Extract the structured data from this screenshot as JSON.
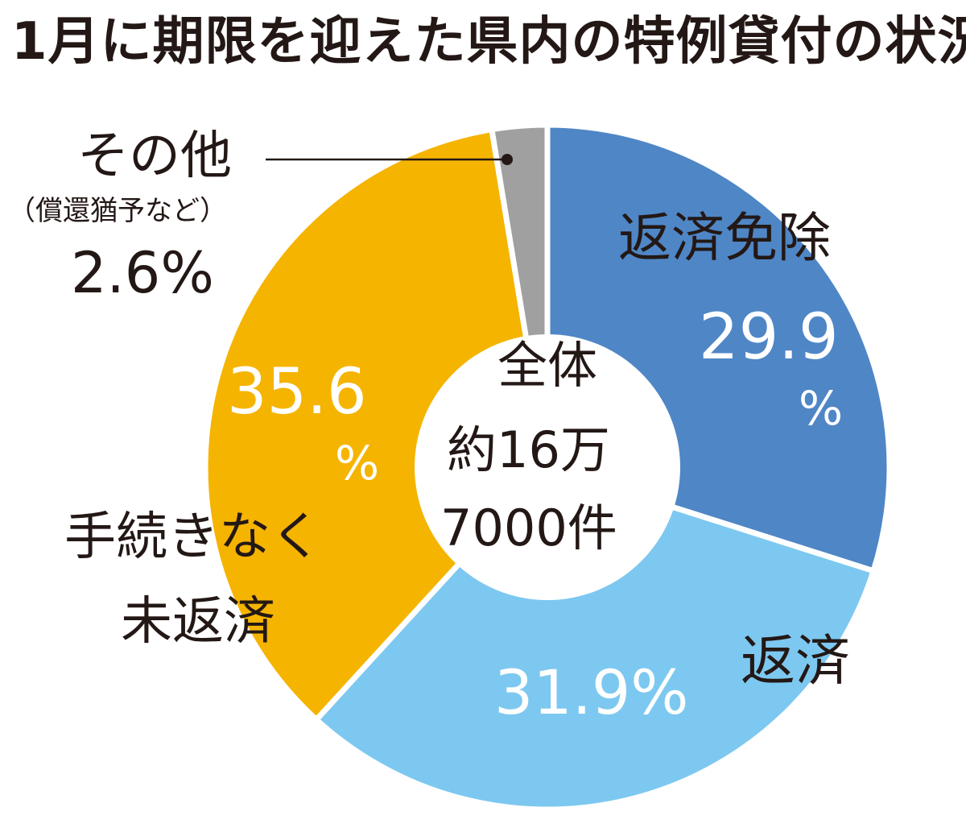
{
  "title": "1月に期限を迎えた県内の特例貸付の状況",
  "center": {
    "line1": "全体",
    "line2": "約16万",
    "line3": "7000件"
  },
  "chart_data": {
    "type": "pie",
    "donut": true,
    "start": "12 o'clock",
    "direction": "clockwise",
    "total_label": "全体約16万7000件",
    "slices": [
      {
        "label": "返済免除",
        "value": 29.9,
        "value_text": "29.9",
        "unit": "%",
        "color": "#4f86c6"
      },
      {
        "label": "返済",
        "value": 31.9,
        "value_text": "31.9%",
        "color": "#7dc8f0"
      },
      {
        "label_line1": "手続きなく",
        "label_line2": "未返済",
        "value": 35.6,
        "value_text": "35.6",
        "unit": "%",
        "color": "#f5b400"
      },
      {
        "label": "その他",
        "sublabel": "（償還猶予など）",
        "value": 2.6,
        "value_text": "2.6%",
        "color": "#a0a0a0"
      }
    ]
  }
}
